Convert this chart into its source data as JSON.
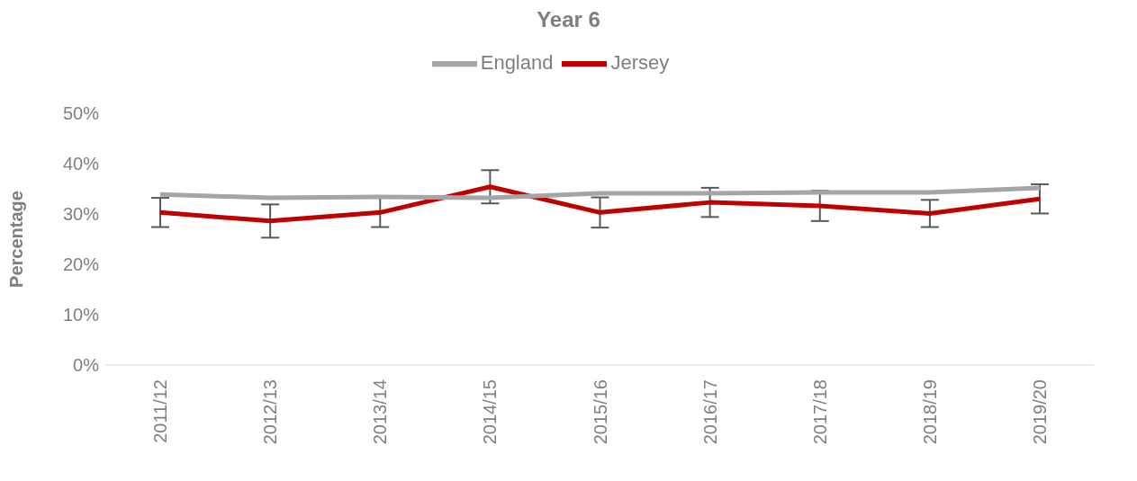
{
  "chart_data": {
    "type": "line",
    "title": "Year 6",
    "ylabel": "Percentage",
    "categories": [
      "2011/12",
      "2012/13",
      "2013/14",
      "2014/15",
      "2015/16",
      "2016/17",
      "2017/18",
      "2018/19",
      "2019/20"
    ],
    "series": [
      {
        "name": "Jersey",
        "color": "#c00000",
        "values": [
          30.3,
          28.6,
          30.3,
          35.4,
          30.3,
          32.3,
          31.6,
          30.1,
          33.0
        ],
        "errors": [
          2.9,
          3.3,
          2.9,
          3.3,
          3.0,
          2.9,
          3.0,
          2.7,
          2.9
        ]
      },
      {
        "name": "England",
        "color": "#a5a5a5",
        "values": [
          33.9,
          33.2,
          33.4,
          33.2,
          34.1,
          34.1,
          34.3,
          34.3,
          35.2
        ]
      }
    ],
    "ylim": [
      0,
      50
    ],
    "yticks": [
      {
        "value": 0,
        "label": "0%"
      },
      {
        "value": 10,
        "label": "10%"
      },
      {
        "value": 20,
        "label": "20%"
      },
      {
        "value": 30,
        "label": "30%"
      },
      {
        "value": 40,
        "label": "40%"
      },
      {
        "value": 50,
        "label": "50%"
      }
    ],
    "grid": false,
    "legend": "top",
    "marker": "none",
    "line_style": "solid"
  }
}
